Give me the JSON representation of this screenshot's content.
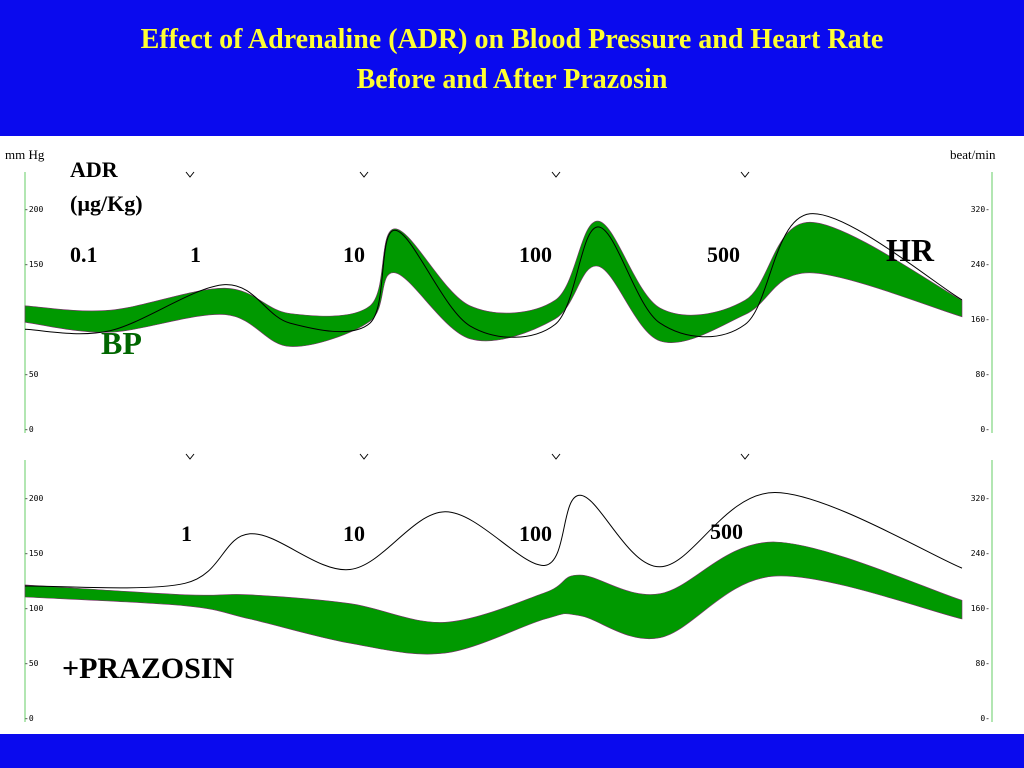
{
  "title_line1": "Effect of Adrenaline (ADR) on Blood Pressure and Heart Rate",
  "title_line2": "Before and After Prazosin",
  "colors": {
    "header": "#0A0AEE",
    "title": "#FFFF33",
    "bp_band": "#009900",
    "bp_label": "#006600",
    "hr_trace": "#000000"
  },
  "chart_data": [
    {
      "type": "line",
      "panel": "control",
      "left_axis_unit": "mm Hg",
      "right_axis_unit": "beat/min",
      "left_ticks": [
        "200",
        "150",
        "100",
        "50",
        "0"
      ],
      "right_ticks": [
        "320",
        "240",
        "160",
        "80",
        "0"
      ],
      "left_range": [
        0,
        200
      ],
      "right_range": [
        0,
        320
      ],
      "dose_header": [
        "ADR",
        "(µg/Kg)"
      ],
      "doses": [
        "0.1",
        "1",
        "10",
        "100",
        "500"
      ],
      "injection_marks": 4,
      "series": [
        {
          "name": "HR",
          "approx_values": [
            145,
            143,
            210,
            154,
            154,
            289,
            150,
            152,
            294,
            154,
            152,
            313,
            188
          ]
        },
        {
          "name": "BP",
          "approx_systolic": [
            112,
            108,
            128,
            105,
            112,
            182,
            112,
            117,
            189,
            110,
            117,
            188,
            117
          ],
          "approx_diastolic": [
            97,
            88,
            104,
            75,
            98,
            142,
            82,
            100,
            148,
            80,
            104,
            142,
            102
          ]
        }
      ],
      "label_hr": "HR",
      "label_bp": "BP"
    },
    {
      "type": "line",
      "panel": "after prazosin",
      "left_ticks": [
        "200",
        "150",
        "100",
        "50",
        "0"
      ],
      "right_ticks": [
        "320",
        "240",
        "160",
        "80",
        "0"
      ],
      "left_range": [
        0,
        200
      ],
      "right_range": [
        0,
        320
      ],
      "doses": [
        "1",
        "10",
        "100",
        "500"
      ],
      "injection_marks": 4,
      "series": [
        {
          "name": "HR",
          "approx_values": [
            192,
            196,
            268,
            216,
            300,
            222,
            324,
            220,
            328,
            218
          ]
        },
        {
          "name": "BP",
          "approx_systolic": [
            121,
            112,
            112,
            104,
            87,
            114,
            130,
            113,
            160,
            107
          ],
          "approx_diastolic": [
            110,
            102,
            90,
            68,
            59,
            90,
            93,
            73,
            129,
            90
          ]
        }
      ],
      "label": "+PRAZOSIN"
    }
  ]
}
